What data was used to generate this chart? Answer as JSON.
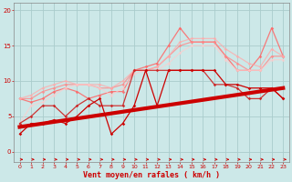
{
  "xlabel": "Vent moyen/en rafales ( km/h )",
  "xlim": [
    -0.5,
    23.5
  ],
  "ylim": [
    -1.5,
    21
  ],
  "xticks": [
    0,
    1,
    2,
    3,
    4,
    5,
    6,
    7,
    8,
    9,
    10,
    11,
    12,
    13,
    14,
    15,
    16,
    17,
    18,
    19,
    20,
    21,
    22,
    23
  ],
  "yticks": [
    0,
    5,
    10,
    15,
    20
  ],
  "background_color": "#cce8e8",
  "grid_color": "#aacccc",
  "series": [
    {
      "x": [
        0,
        1,
        2,
        3,
        4,
        5,
        6,
        7,
        8,
        9,
        10,
        11,
        12,
        13,
        14,
        15,
        16,
        17,
        18,
        19,
        20,
        21,
        22,
        23
      ],
      "y": [
        2.5,
        4.0,
        4.0,
        4.5,
        4.0,
        5.0,
        6.5,
        7.5,
        2.5,
        4.0,
        6.5,
        11.5,
        6.5,
        11.5,
        11.5,
        11.5,
        11.5,
        11.5,
        9.5,
        9.5,
        9.0,
        9.0,
        9.0,
        7.5
      ],
      "color": "#cc0000",
      "lw": 0.9,
      "marker": "D",
      "ms": 1.8,
      "alpha": 1.0,
      "zorder": 4
    },
    {
      "x": [
        0,
        1,
        2,
        3,
        4,
        5,
        6,
        7,
        8,
        9,
        10,
        11,
        12,
        13,
        14,
        15,
        16,
        17,
        18,
        19,
        20,
        21,
        22,
        23
      ],
      "y": [
        4.0,
        5.0,
        6.5,
        6.5,
        5.0,
        6.5,
        7.5,
        6.5,
        6.5,
        6.5,
        11.5,
        11.5,
        11.5,
        11.5,
        11.5,
        11.5,
        11.5,
        9.5,
        9.5,
        9.0,
        7.5,
        7.5,
        9.0,
        7.5
      ],
      "color": "#cc2222",
      "lw": 0.9,
      "marker": "D",
      "ms": 1.8,
      "alpha": 0.9,
      "zorder": 3
    },
    {
      "x": [
        0,
        1,
        2,
        3,
        4,
        5,
        6,
        7,
        8,
        9,
        10,
        11,
        12,
        13,
        14,
        15,
        16,
        17,
        18,
        19,
        20,
        21,
        22,
        23
      ],
      "y": [
        7.5,
        7.0,
        7.5,
        8.5,
        9.0,
        8.5,
        7.5,
        8.0,
        8.5,
        8.5,
        11.5,
        12.0,
        12.5,
        15.0,
        17.5,
        15.5,
        15.5,
        15.5,
        13.5,
        11.5,
        11.5,
        13.5,
        17.5,
        13.5
      ],
      "color": "#ff6666",
      "lw": 0.9,
      "marker": "D",
      "ms": 1.8,
      "alpha": 0.85,
      "zorder": 2
    },
    {
      "x": [
        0,
        1,
        2,
        3,
        4,
        5,
        6,
        7,
        8,
        9,
        10,
        11,
        12,
        13,
        14,
        15,
        16,
        17,
        18,
        19,
        20,
        21,
        22,
        23
      ],
      "y": [
        7.5,
        7.5,
        8.5,
        9.0,
        9.5,
        9.5,
        9.5,
        9.0,
        9.0,
        9.5,
        11.5,
        11.5,
        12.0,
        13.5,
        15.0,
        15.5,
        15.5,
        15.5,
        13.5,
        12.5,
        11.5,
        11.5,
        13.5,
        13.5
      ],
      "color": "#ff8888",
      "lw": 0.9,
      "marker": "D",
      "ms": 1.8,
      "alpha": 0.8,
      "zorder": 2
    },
    {
      "x": [
        0,
        1,
        2,
        3,
        4,
        5,
        6,
        7,
        8,
        9,
        10,
        11,
        12,
        13,
        14,
        15,
        16,
        17,
        18,
        19,
        20,
        21,
        22,
        23
      ],
      "y": [
        7.5,
        8.0,
        9.0,
        9.5,
        10.0,
        9.5,
        9.5,
        9.5,
        9.0,
        10.0,
        11.5,
        11.5,
        12.0,
        13.5,
        15.5,
        16.0,
        16.0,
        16.0,
        14.5,
        13.5,
        12.5,
        12.0,
        14.5,
        13.5
      ],
      "color": "#ffaaaa",
      "lw": 0.9,
      "marker": "D",
      "ms": 1.8,
      "alpha": 0.75,
      "zorder": 2
    },
    {
      "x": [
        0,
        1,
        2,
        3,
        4,
        5,
        6,
        7,
        8,
        9,
        10,
        11,
        12,
        13,
        14,
        15,
        16,
        17,
        18,
        19,
        20,
        21,
        22,
        23
      ],
      "y": [
        4.0,
        6.5,
        7.0,
        8.0,
        9.0,
        9.5,
        9.5,
        9.0,
        8.0,
        9.0,
        11.0,
        11.5,
        11.5,
        12.5,
        14.0,
        15.0,
        15.0,
        15.0,
        13.0,
        11.5,
        11.5,
        11.5,
        13.0,
        13.0
      ],
      "color": "#ffcccc",
      "lw": 0.9,
      "marker": "D",
      "ms": 1.8,
      "alpha": 0.7,
      "zorder": 2
    },
    {
      "x": [
        0,
        23
      ],
      "y": [
        3.5,
        9.0
      ],
      "color": "#cc0000",
      "lw": 3.0,
      "marker": null,
      "ms": 0,
      "alpha": 1.0,
      "zorder": 5
    }
  ],
  "arrow_color": "#cc0000",
  "tick_label_color": "#cc0000",
  "xlabel_color": "#cc0000",
  "tick_fontsize": 4.5,
  "xlabel_fontsize": 6.0
}
